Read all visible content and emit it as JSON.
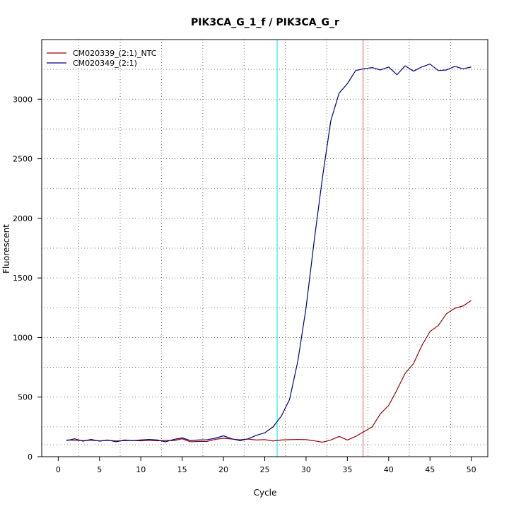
{
  "chart_data": {
    "type": "line",
    "title": "PIK3CA_G_1_f / PIK3CA_G_r",
    "xlabel": "Cycle",
    "ylabel": "Fluorescent",
    "xlim": [
      -2,
      52
    ],
    "ylim": [
      0,
      3500
    ],
    "xticks": [
      0,
      5,
      10,
      15,
      20,
      25,
      30,
      35,
      40,
      45,
      50
    ],
    "yticks": [
      0,
      500,
      1000,
      1500,
      2000,
      2500,
      3000
    ],
    "grid": true,
    "grid_style": "dotted",
    "grid_x": [
      2.5,
      7.5,
      12.5,
      17.5,
      22.5,
      27.5,
      32.5,
      37.5,
      42.5,
      47.5
    ],
    "grid_y": [
      100,
      250,
      500,
      750,
      1000,
      1250,
      1500,
      1750,
      2000,
      2250,
      2500,
      2750,
      3000,
      3250
    ],
    "legend_position": "top-left",
    "x": [
      1,
      2,
      3,
      4,
      5,
      6,
      7,
      8,
      9,
      10,
      11,
      12,
      13,
      14,
      15,
      16,
      17,
      18,
      19,
      20,
      21,
      22,
      23,
      24,
      25,
      26,
      27,
      28,
      29,
      30,
      31,
      32,
      33,
      34,
      35,
      36,
      37,
      38,
      39,
      40,
      41,
      42,
      43,
      44,
      45,
      46,
      47,
      48,
      49,
      50
    ],
    "series": [
      {
        "name": "CM020339_(2:1)_NTC",
        "color": "#990000",
        "values": [
          140,
          138,
          135,
          138,
          133,
          137,
          132,
          135,
          136,
          133,
          137,
          133,
          137,
          135,
          150,
          125,
          128,
          128,
          145,
          155,
          148,
          142,
          148,
          140,
          143,
          132,
          140,
          143,
          145,
          143,
          133,
          122,
          140,
          170,
          140,
          170,
          210,
          250,
          360,
          430,
          560,
          700,
          780,
          930,
          1050,
          1100,
          1200,
          1245,
          1265,
          1310
        ]
      },
      {
        "name": "CM020349_(2:1)",
        "color": "#000080",
        "values": [
          135,
          150,
          130,
          145,
          130,
          140,
          125,
          140,
          135,
          140,
          145,
          140,
          125,
          145,
          158,
          135,
          140,
          142,
          155,
          175,
          150,
          135,
          150,
          180,
          200,
          250,
          340,
          480,
          800,
          1250,
          1820,
          2350,
          2820,
          3050,
          3130,
          3240,
          3255,
          3265,
          3245,
          3270,
          3205,
          3280,
          3235,
          3270,
          3295,
          3240,
          3245,
          3275,
          3255,
          3270
        ]
      }
    ],
    "threshold_lines": [
      {
        "x": 26.5,
        "color": "#00e5ee"
      },
      {
        "x": 36.9,
        "color": "#cd5c5c"
      }
    ]
  }
}
